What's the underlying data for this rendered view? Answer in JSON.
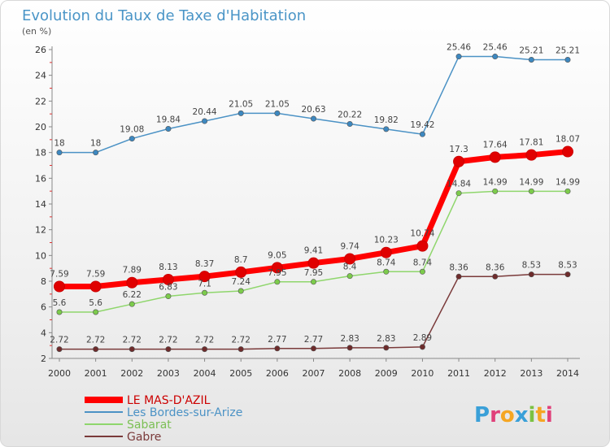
{
  "chart_data": {
    "type": "line",
    "title": "Evolution du Taux de Taxe d'Habitation",
    "subtitle": "(en %)",
    "xlabel": "",
    "ylabel": "",
    "x": [
      "2000",
      "2001",
      "2002",
      "2003",
      "2004",
      "2005",
      "2006",
      "2007",
      "2008",
      "2009",
      "2010",
      "2011",
      "2012",
      "2013",
      "2014"
    ],
    "ylim": [
      2,
      26
    ],
    "yticks": [
      2,
      4,
      6,
      8,
      10,
      12,
      14,
      16,
      18,
      20,
      22,
      24,
      26
    ],
    "grid": false,
    "legend_position": "bottom-left",
    "series": [
      {
        "name": "Les Bordes-sur-Arize",
        "color": "#4b92c5",
        "point_color": "#3d88c0",
        "values": [
          18,
          18,
          19.08,
          19.84,
          20.44,
          21.05,
          21.05,
          20.63,
          20.22,
          19.82,
          19.42,
          25.46,
          25.46,
          25.21,
          25.21
        ],
        "labels": [
          "18",
          "18",
          "19.08",
          "19.84",
          "20.44",
          "21.05",
          "21.05",
          "20.63",
          "20.22",
          "19.82",
          "19.42",
          "25.46",
          "25.46",
          "25.21",
          "25.21"
        ]
      },
      {
        "name": "Sabarat",
        "color": "#8fd66c",
        "point_color": "#7ccb4b",
        "values": [
          5.6,
          5.6,
          6.22,
          6.83,
          7.1,
          7.24,
          7.95,
          7.95,
          8.4,
          8.74,
          8.74,
          14.84,
          14.99,
          14.99,
          14.99
        ],
        "labels": [
          "5.6",
          "5.6",
          "6.22",
          "6.83",
          "7.1",
          "7.24",
          "7.95",
          "7.95",
          "8.4",
          "8.74",
          "8.74",
          "14.84",
          "14.99",
          "14.99",
          "14.99"
        ]
      },
      {
        "name": "Gabre",
        "color": "#7a3a3a",
        "point_color": "#6e2b2b",
        "values": [
          2.72,
          2.72,
          2.72,
          2.72,
          2.72,
          2.72,
          2.77,
          2.77,
          2.83,
          2.83,
          2.89,
          8.36,
          8.36,
          8.53,
          8.53
        ],
        "labels": [
          "2.72",
          "2.72",
          "2.72",
          "2.72",
          "2.72",
          "2.72",
          "2.77",
          "2.77",
          "2.83",
          "2.83",
          "2.89",
          "8.36",
          "8.36",
          "8.53",
          "8.53"
        ]
      },
      {
        "name": "LE MAS-D'AZIL",
        "color": "#ff0000",
        "point_color": "#e00000",
        "values": [
          7.59,
          7.59,
          7.89,
          8.13,
          8.37,
          8.7,
          9.05,
          9.41,
          9.74,
          10.23,
          10.74,
          17.3,
          17.64,
          17.81,
          18.07
        ],
        "labels": [
          "7.59",
          "7.59",
          "7.89",
          "8.13",
          "8.37",
          "8.7",
          "9.05",
          "9.41",
          "9.74",
          "10.23",
          "10.74",
          "17.3",
          "17.64",
          "17.81",
          "18.07"
        ]
      }
    ],
    "legend": [
      {
        "name": "LE MAS-D'AZIL",
        "color": "#ff0000",
        "text_color": "#cc0000"
      },
      {
        "name": "Les Bordes-sur-Arize",
        "color": "#4b92c5",
        "text_color": "#4b92c5"
      },
      {
        "name": "Sabarat",
        "color": "#8fd66c",
        "text_color": "#7bbf54"
      },
      {
        "name": "Gabre",
        "color": "#7a3a3a",
        "text_color": "#7a3a3a"
      }
    ]
  },
  "logo": {
    "text": "Proxiti",
    "letter_colors": [
      "#3aa0d8",
      "#e0407a",
      "#f5a623",
      "#3aa0d8",
      "#7cc243",
      "#f5a623",
      "#e0407a"
    ]
  }
}
